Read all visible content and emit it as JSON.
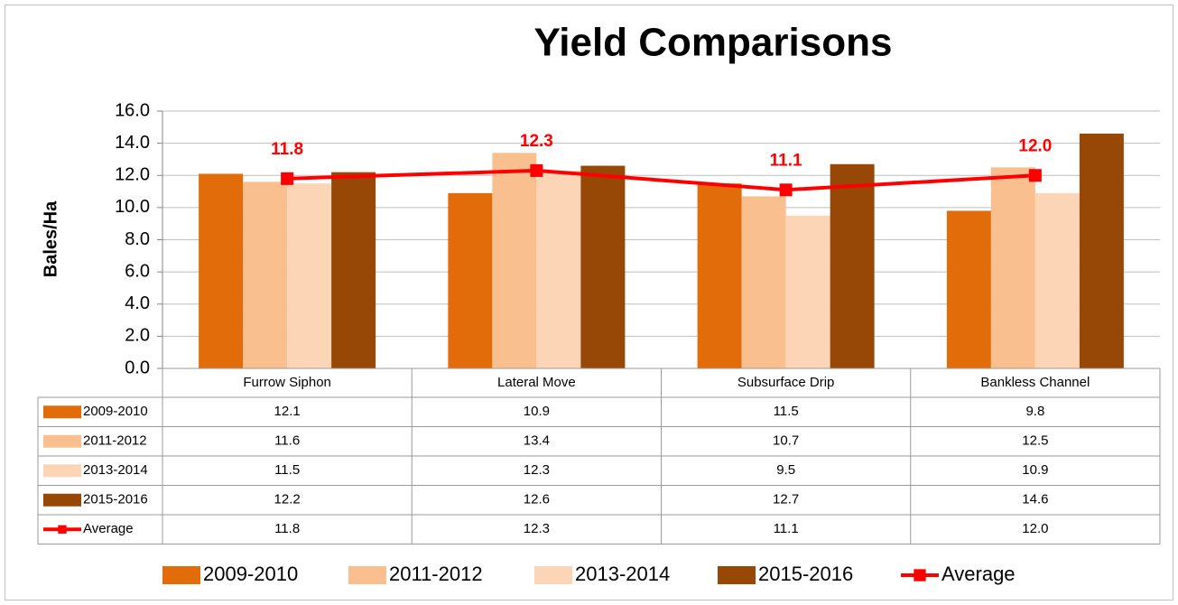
{
  "chart_data": {
    "type": "bar",
    "title": "Yield Comparisons",
    "y_label": "Bales/Ha",
    "categories": [
      "Furrow Siphon",
      "Lateral Move",
      "Subsurface Drip",
      "Bankless Channel"
    ],
    "series": [
      {
        "name": "2009-2010",
        "color": "#e36c0a",
        "values": [
          12.1,
          10.9,
          11.5,
          9.8
        ],
        "value_labels": [
          "12.1",
          "10.9",
          "11.5",
          "9.8"
        ]
      },
      {
        "name": "2011-2012",
        "color": "#fabf8f",
        "values": [
          11.6,
          13.4,
          10.7,
          12.5
        ],
        "value_labels": [
          "11.6",
          "13.4",
          "10.7",
          "12.5"
        ]
      },
      {
        "name": "2013-2014",
        "color": "#fbd5b5",
        "values": [
          11.5,
          12.3,
          9.5,
          10.9
        ],
        "value_labels": [
          "11.5",
          "12.3",
          "9.5",
          "10.9"
        ]
      },
      {
        "name": "2015-2016",
        "color": "#974706",
        "values": [
          12.2,
          12.6,
          12.7,
          14.6
        ],
        "value_labels": [
          "12.2",
          "12.6",
          "12.7",
          "14.6"
        ]
      },
      {
        "name": "Average",
        "type": "line",
        "color": "#ff0000",
        "values": [
          11.8,
          12.3,
          11.1,
          12.0
        ],
        "value_labels": [
          "11.8",
          "12.3",
          "11.1",
          "12.0"
        ]
      }
    ],
    "ylim": [
      0,
      16
    ],
    "yticks": [
      {
        "value": 0,
        "label": "0.0"
      },
      {
        "value": 2,
        "label": "2.0"
      },
      {
        "value": 4,
        "label": "4.0"
      },
      {
        "value": 6,
        "label": "6.0"
      },
      {
        "value": 8,
        "label": "8.0"
      },
      {
        "value": 10,
        "label": "10.0"
      },
      {
        "value": 12,
        "label": "12.0"
      },
      {
        "value": 14,
        "label": "14.0"
      },
      {
        "value": 16,
        "label": "16.0"
      }
    ],
    "grid": true,
    "legend": "bottom"
  }
}
